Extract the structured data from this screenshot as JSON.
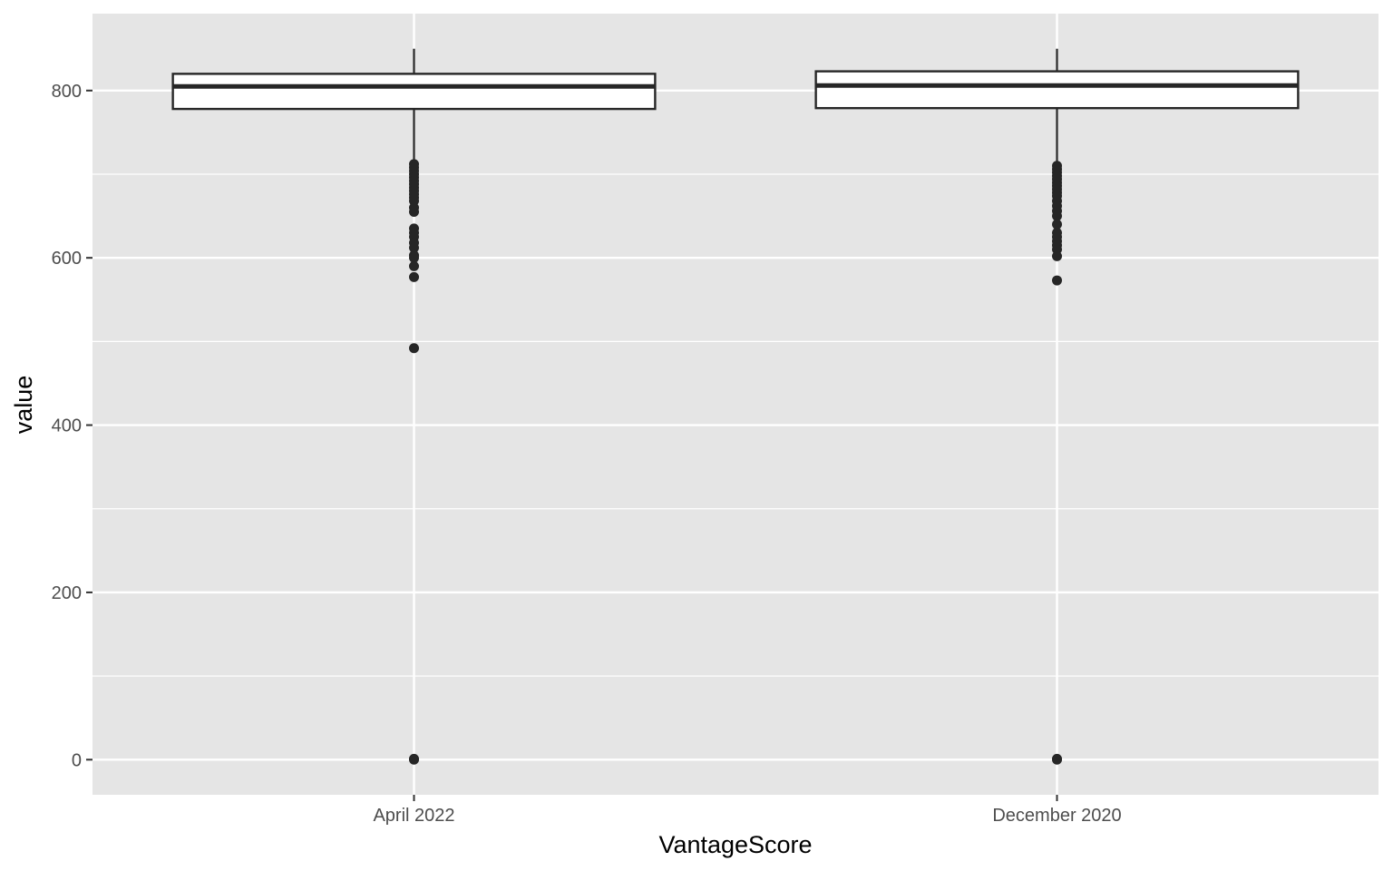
{
  "chart_data": {
    "type": "boxplot",
    "xlabel": "VantageScore",
    "ylabel": "value",
    "categories": [
      "April 2022",
      "December 2020"
    ],
    "ylim": [
      -42,
      892
    ],
    "yticks": [
      0,
      200,
      400,
      600,
      800
    ],
    "grid": true,
    "legend": "none",
    "colors": {
      "panel": "#e5e5e5",
      "grid": "#ffffff",
      "box_fill": "#ffffff",
      "box_stroke": "#262626",
      "point": "#262626",
      "tick_text": "#4d4d4d",
      "title_text": "#000000"
    },
    "boxes": [
      {
        "category": "April 2022",
        "lower_whisker": 715,
        "q1": 778,
        "median": 805,
        "q3": 820,
        "upper_whisker": 850,
        "outliers": [
          712,
          708,
          704,
          700,
          696,
          692,
          688,
          684,
          680,
          676,
          672,
          668,
          660,
          655,
          635,
          630,
          625,
          618,
          612,
          603,
          600,
          590,
          577,
          492,
          1,
          0
        ]
      },
      {
        "category": "December 2020",
        "lower_whisker": 714,
        "q1": 779,
        "median": 806,
        "q3": 823,
        "upper_whisker": 850,
        "outliers": [
          710,
          706,
          702,
          698,
          694,
          690,
          686,
          682,
          678,
          674,
          668,
          662,
          656,
          650,
          640,
          630,
          625,
          620,
          615,
          610,
          602,
          573,
          1,
          0
        ]
      }
    ]
  }
}
